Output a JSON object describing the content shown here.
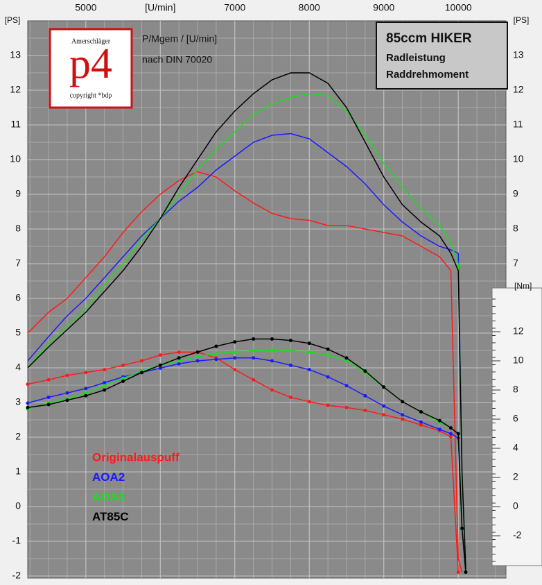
{
  "chart_data": {
    "type": "line",
    "logo": {
      "top": "Amerschläger",
      "mark": "p4",
      "bottom": "copyright *bdp"
    },
    "subtitle_lines": [
      "P/Mgem / [U/min]",
      "nach DIN 70020"
    ],
    "title_box": [
      "85ccm HIKER",
      "Radleistung",
      "Raddrehmoment"
    ],
    "y_label": "[PS]",
    "y2_label": "[Nm]",
    "x": [
      4220,
      4500,
      4750,
      5000,
      5250,
      5500,
      5750,
      6000,
      6250,
      6500,
      6750,
      7000,
      7250,
      7500,
      7750,
      8000,
      8250,
      8500,
      8750,
      9000,
      9250,
      9500,
      9750,
      9900,
      10000,
      10050,
      10100
    ],
    "xlim": [
      4220,
      10640
    ],
    "xticks": [
      5000,
      {
        "value": 6000,
        "label": "[U/min]"
      },
      7000,
      8000,
      9000,
      10000
    ],
    "ylim": [
      -2,
      14
    ],
    "yticks": [
      -2,
      -1,
      0,
      1,
      2,
      3,
      4,
      5,
      6,
      7,
      8,
      9,
      10,
      11,
      12,
      13
    ],
    "y2lim": [
      -4.76,
      33.33
    ],
    "y2ticks": [
      -2,
      0,
      2,
      4,
      6,
      8,
      10,
      12
    ],
    "grid": true,
    "series": [
      {
        "name": "Originalauspuff",
        "color": "#ff1a1a",
        "values": [
          5.0,
          5.6,
          6.0,
          6.6,
          7.2,
          7.9,
          8.5,
          9.0,
          9.4,
          9.65,
          9.5,
          9.1,
          8.75,
          8.45,
          8.3,
          8.25,
          8.1,
          8.1,
          8.0,
          7.9,
          7.8,
          7.5,
          7.2,
          6.8,
          -1.5,
          -1.9,
          null
        ],
        "torque_values": [
          8.4,
          8.7,
          9.0,
          9.2,
          9.4,
          9.7,
          10.0,
          10.4,
          10.6,
          10.6,
          10.2,
          9.4,
          8.7,
          8.0,
          7.5,
          7.2,
          6.95,
          6.8,
          6.6,
          6.3,
          6.0,
          5.6,
          5.2,
          4.8,
          -4.5,
          null,
          null
        ]
      },
      {
        "name": "AOA2",
        "color": "#1a1aff",
        "values": [
          4.2,
          4.9,
          5.5,
          6.0,
          6.6,
          7.2,
          7.8,
          8.3,
          8.8,
          9.2,
          9.7,
          10.1,
          10.5,
          10.7,
          10.75,
          10.6,
          10.2,
          9.8,
          9.3,
          8.7,
          8.2,
          7.8,
          7.5,
          7.4,
          7.3,
          1.0,
          -1.7
        ],
        "torque_values": [
          7.1,
          7.5,
          7.8,
          8.1,
          8.5,
          8.9,
          9.2,
          9.5,
          9.8,
          10.0,
          10.1,
          10.2,
          10.2,
          10.0,
          9.7,
          9.4,
          8.9,
          8.3,
          7.6,
          6.9,
          6.3,
          5.8,
          5.3,
          5.0,
          4.7,
          -1.5,
          -4.5
        ]
      },
      {
        "name": "AOA3",
        "color": "#1ae01a",
        "values": [
          4.0,
          4.7,
          5.2,
          5.7,
          6.4,
          7.0,
          7.7,
          8.3,
          9.0,
          9.7,
          10.3,
          10.8,
          11.3,
          11.6,
          11.8,
          11.9,
          11.85,
          11.4,
          10.7,
          9.9,
          9.2,
          8.6,
          8.1,
          7.6,
          7.0,
          1.0,
          -1.7
        ],
        "torque_values": [
          6.7,
          7.1,
          7.4,
          7.8,
          8.3,
          8.8,
          9.3,
          9.7,
          10.0,
          10.3,
          10.5,
          10.6,
          10.7,
          10.7,
          10.7,
          10.6,
          10.4,
          10.0,
          9.2,
          8.2,
          7.2,
          6.5,
          5.8,
          5.4,
          5.0,
          -1.5,
          -4.5
        ]
      },
      {
        "name": "AT85C",
        "color": "#000000",
        "values": [
          4.0,
          4.6,
          5.1,
          5.6,
          6.2,
          6.8,
          7.5,
          8.3,
          9.2,
          10.0,
          10.8,
          11.4,
          11.9,
          12.3,
          12.5,
          12.5,
          12.2,
          11.5,
          10.5,
          9.5,
          8.7,
          8.2,
          7.8,
          7.3,
          6.8,
          1.0,
          -1.8
        ],
        "torque_values": [
          6.8,
          7.0,
          7.3,
          7.6,
          8.0,
          8.6,
          9.2,
          9.7,
          10.2,
          10.6,
          11.0,
          11.3,
          11.5,
          11.5,
          11.4,
          11.2,
          10.8,
          10.2,
          9.3,
          8.2,
          7.2,
          6.5,
          5.9,
          5.4,
          5.0,
          -1.5,
          -4.5
        ]
      }
    ]
  }
}
